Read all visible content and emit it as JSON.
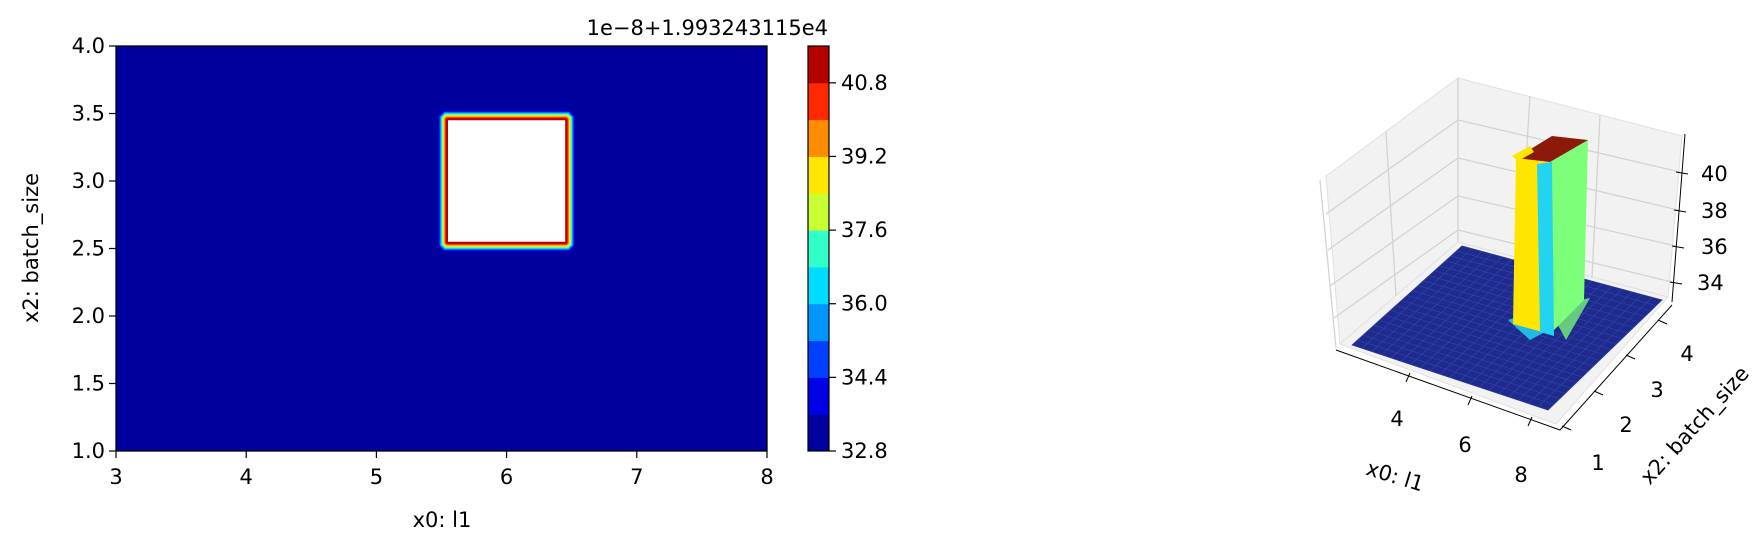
{
  "chart_data": [
    {
      "type": "heatmap",
      "subtype": "filled-contour",
      "xlabel": "x0: l1",
      "ylabel": "x2: batch_size",
      "xlim": [
        3,
        8
      ],
      "ylim": [
        1,
        4
      ],
      "xticks": [
        "3",
        "4",
        "5",
        "6",
        "7",
        "8"
      ],
      "yticks": [
        "1.0",
        "1.5",
        "2.0",
        "2.5",
        "3.0",
        "3.5",
        "4.0"
      ],
      "colorbar": {
        "offset_label": "1e−8+1.993243115e4",
        "ticks": [
          "32.8",
          "34.4",
          "36.0",
          "37.6",
          "39.2",
          "40.8"
        ],
        "range": [
          32.8,
          41.6
        ],
        "levels": 11,
        "colormap": "jet"
      },
      "regions": [
        {
          "level": 32.8,
          "desc": "background",
          "x": [
            3,
            8
          ],
          "y": [
            1,
            4
          ]
        },
        {
          "level": 41.6,
          "desc": "peak (above top level, unfilled)",
          "x": [
            5.55,
            6.45
          ],
          "y": [
            2.55,
            3.45
          ]
        }
      ],
      "background_color": "#00009f"
    },
    {
      "type": "surface3d",
      "xlabel": "x0: l1",
      "ylabel": "x2: batch_size",
      "xticks": [
        "4",
        "6",
        "8"
      ],
      "yticks": [
        "1",
        "2",
        "3",
        "4"
      ],
      "zticks": [
        "34",
        "36",
        "38",
        "40"
      ],
      "base_value": 32.8,
      "peak_value": 41.6,
      "peak_x": [
        5.5,
        6.5
      ],
      "peak_y": [
        2.5,
        3.5
      ],
      "colors": {
        "base": "#1e2a8c",
        "top": "#8b1a0b",
        "front": "#ffe500",
        "edge": "#22d4f0",
        "right": "#7dff7a",
        "pane": "#f2f2f2",
        "grid": "#d3d3d3"
      }
    }
  ]
}
